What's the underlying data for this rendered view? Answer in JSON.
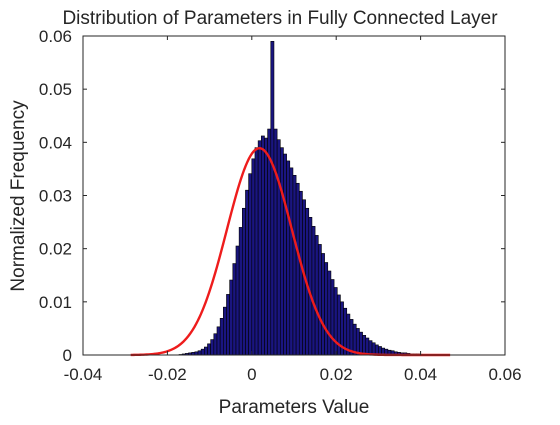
{
  "chart_data": {
    "type": "bar",
    "title": "Distribution of Parameters in Fully Connected Layer",
    "xlabel": "Parameters Value",
    "ylabel": "Normalized Frequency",
    "xlim": [
      -0.04,
      0.06
    ],
    "ylim": [
      0,
      0.06
    ],
    "xticks": [
      "-0.04",
      "-0.02",
      "0",
      "0.02",
      "0.04",
      "0.06"
    ],
    "xtick_values": [
      -0.04,
      -0.02,
      0,
      0.02,
      0.04,
      0.06
    ],
    "yticks": [
      "0",
      "0.01",
      "0.02",
      "0.03",
      "0.04",
      "0.05",
      "0.06"
    ],
    "ytick_values": [
      0,
      0.01,
      0.02,
      0.03,
      0.04,
      0.05,
      0.06
    ],
    "grid": false,
    "series": [
      {
        "type": "histogram",
        "bin_width": 0.00075,
        "bin_start": -0.01725,
        "values": [
          0.0001,
          0.0002,
          0.0003,
          0.0004,
          0.0005,
          0.0006,
          0.0008,
          0.0011,
          0.0015,
          0.0021,
          0.0029,
          0.004,
          0.0053,
          0.0069,
          0.009,
          0.0114,
          0.0141,
          0.0172,
          0.0205,
          0.024,
          0.0276,
          0.031,
          0.0341,
          0.0369,
          0.039,
          0.0403,
          0.0412,
          0.0408,
          0.0425,
          0.059,
          0.0425,
          0.0405,
          0.039,
          0.0378,
          0.0365,
          0.0352,
          0.0338,
          0.0323,
          0.0308,
          0.0292,
          0.0276,
          0.0259,
          0.0242,
          0.0225,
          0.0208,
          0.0191,
          0.0174,
          0.0158,
          0.0142,
          0.0127,
          0.0113,
          0.01,
          0.0088,
          0.0077,
          0.0067,
          0.0058,
          0.005,
          0.0043,
          0.0037,
          0.0032,
          0.0027,
          0.0023,
          0.0019,
          0.0016,
          0.0013,
          0.0011,
          0.0009,
          0.0008,
          0.0006,
          0.0005,
          0.0004,
          0.0004,
          0.0003,
          0.0002,
          0.0002,
          0.0002,
          0.0001,
          0.0001,
          0.0001,
          0.0001
        ]
      },
      {
        "type": "line",
        "distribution": "normal fit",
        "mean": 0.0018,
        "sd": 0.0077,
        "peak": 0.0389,
        "x_range": [
          -0.0287,
          0.047
        ]
      }
    ],
    "colors": {
      "bar_fill": "#1a1580",
      "bar_edge": "#000000",
      "fit_line": "#ee1c1c",
      "axes": "#262626",
      "text": "#262626"
    }
  }
}
